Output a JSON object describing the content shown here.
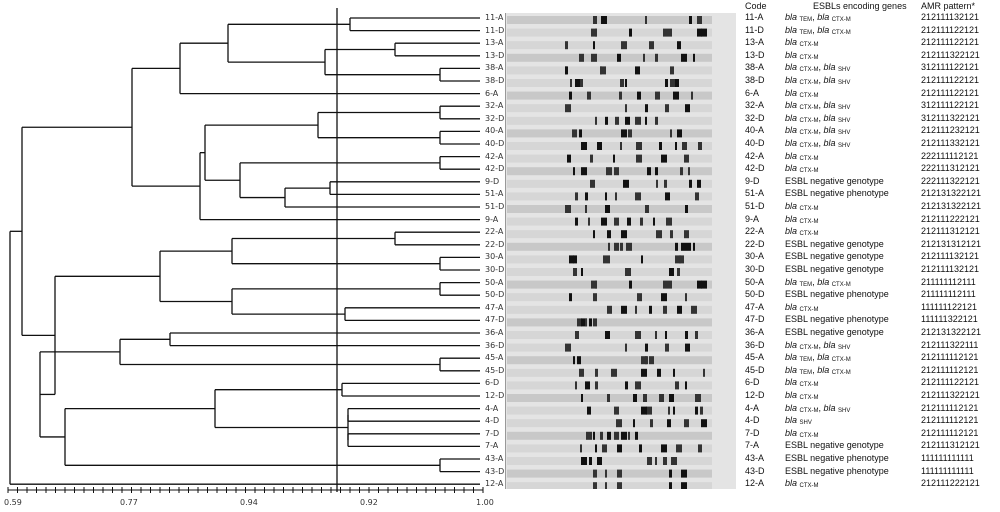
{
  "headers": {
    "code": "Code",
    "genes": "ESBLs encoding genes",
    "amr": "AMR pattern*"
  },
  "scale": {
    "ticks": [
      "0.59",
      "0.77",
      "0.94",
      "0.92",
      "1.00"
    ]
  },
  "rows": [
    {
      "code": "11-A",
      "genes": [
        [
          "TEM"
        ],
        [
          "CTX-M"
        ]
      ],
      "text": "",
      "amr": "212111132121"
    },
    {
      "code": "11-D",
      "genes": [
        [
          "TEM"
        ],
        [
          "CTX-M"
        ]
      ],
      "text": "",
      "amr": "212111122121"
    },
    {
      "code": "13-A",
      "genes": [
        [
          "CTX-M"
        ]
      ],
      "text": "",
      "amr": "212111122121"
    },
    {
      "code": "13-D",
      "genes": [
        [
          "CTX-M"
        ]
      ],
      "text": "",
      "amr": "212111322121"
    },
    {
      "code": "38-A",
      "genes": [
        [
          "CTX-M"
        ],
        [
          "SHV"
        ]
      ],
      "text": "",
      "amr": "312111122121"
    },
    {
      "code": "38-D",
      "genes": [
        [
          "CTX-M"
        ],
        [
          "SHV"
        ]
      ],
      "text": "",
      "amr": "212111122121"
    },
    {
      "code": "6-A",
      "genes": [
        [
          "CTX-M"
        ]
      ],
      "text": "",
      "amr": "212111122121"
    },
    {
      "code": "32-A",
      "genes": [
        [
          "CTX-M"
        ],
        [
          "SHV"
        ]
      ],
      "text": "",
      "amr": "312111122121"
    },
    {
      "code": "32-D",
      "genes": [
        [
          "CTX-M"
        ],
        [
          "SHV"
        ]
      ],
      "text": "",
      "amr": "312111322121"
    },
    {
      "code": "40-A",
      "genes": [
        [
          "CTX-M"
        ],
        [
          "SHV"
        ]
      ],
      "text": "",
      "amr": "212111232121"
    },
    {
      "code": "40-D",
      "genes": [
        [
          "CTX-M"
        ],
        [
          "SHV"
        ]
      ],
      "text": "",
      "amr": "212111332121"
    },
    {
      "code": "42-A",
      "genes": [
        [
          "CTX-M"
        ]
      ],
      "text": "",
      "amr": "222111112121"
    },
    {
      "code": "42-D",
      "genes": [
        [
          "CTX-M"
        ]
      ],
      "text": "",
      "amr": "222111312121"
    },
    {
      "code": "9-D",
      "genes": [],
      "text": "ESBL negative genotype",
      "amr": "222111322121"
    },
    {
      "code": "51-A",
      "genes": [],
      "text": "ESBL negative phenotype",
      "amr": "212131322121"
    },
    {
      "code": "51-D",
      "genes": [
        [
          "CTX-M"
        ]
      ],
      "text": "",
      "amr": "212131322121"
    },
    {
      "code": "9-A",
      "genes": [
        [
          "CTX-M"
        ]
      ],
      "text": "",
      "amr": "212111222121"
    },
    {
      "code": "22-A",
      "genes": [
        [
          "CTX-M"
        ]
      ],
      "text": "",
      "amr": "212111312121"
    },
    {
      "code": "22-D",
      "genes": [],
      "text": "ESBL negative genotype",
      "amr": "212131312121"
    },
    {
      "code": "30-A",
      "genes": [],
      "text": "ESBL negative genotype",
      "amr": "212111132121"
    },
    {
      "code": "30-D",
      "genes": [],
      "text": "ESBL negative genotype",
      "amr": "212111132121"
    },
    {
      "code": "50-A",
      "genes": [
        [
          "TEM"
        ],
        [
          "CTX-M"
        ]
      ],
      "text": "",
      "amr": "211111112111"
    },
    {
      "code": "50-D",
      "genes": [],
      "text": "ESBL negative phenotype",
      "amr": "211111112111"
    },
    {
      "code": "47-A",
      "genes": [
        [
          "CTX-M"
        ]
      ],
      "text": "",
      "amr": "111111122121"
    },
    {
      "code": "47-D",
      "genes": [],
      "text": "ESBL negative phenotype",
      "amr": "111111322121"
    },
    {
      "code": "36-A",
      "genes": [],
      "text": "ESBL negative genotype",
      "amr": "212131322121"
    },
    {
      "code": "36-D",
      "genes": [
        [
          "CTX-M"
        ],
        [
          "SHV"
        ]
      ],
      "text": "",
      "amr": "212111322111"
    },
    {
      "code": "45-A",
      "genes": [
        [
          "TEM"
        ],
        [
          "CTX-M"
        ]
      ],
      "text": "",
      "amr": "212111112121"
    },
    {
      "code": "45-D",
      "genes": [
        [
          "TEM"
        ],
        [
          "CTX-M"
        ]
      ],
      "text": "",
      "amr": "212111112121"
    },
    {
      "code": "6-D",
      "genes": [
        [
          "CTX-M"
        ]
      ],
      "text": "",
      "amr": "212111122121"
    },
    {
      "code": "12-D",
      "genes": [
        [
          "CTX-M"
        ]
      ],
      "text": "",
      "amr": "212111322121"
    },
    {
      "code": "4-A",
      "genes": [
        [
          "CTX-M"
        ],
        [
          "SHV"
        ]
      ],
      "text": "",
      "amr": "212111112121"
    },
    {
      "code": "4-D",
      "genes": [
        [
          "SHV"
        ]
      ],
      "text": "",
      "amr": "212111112121"
    },
    {
      "code": "7-D",
      "genes": [
        [
          "CTX-M"
        ]
      ],
      "text": "",
      "amr": "212111112121"
    },
    {
      "code": "7-A",
      "genes": [],
      "text": "ESBL negative genotype",
      "amr": "212111312121"
    },
    {
      "code": "43-A",
      "genes": [],
      "text": "ESBL negative phenotype",
      "amr": "111111111111"
    },
    {
      "code": "43-D",
      "genes": [],
      "text": "ESBL negative phenotype",
      "amr": "111111111111"
    },
    {
      "code": "12-A",
      "genes": [
        [
          "CTX-M"
        ]
      ],
      "text": "",
      "amr": "212111222121"
    }
  ],
  "gene_prefix": "bla"
}
